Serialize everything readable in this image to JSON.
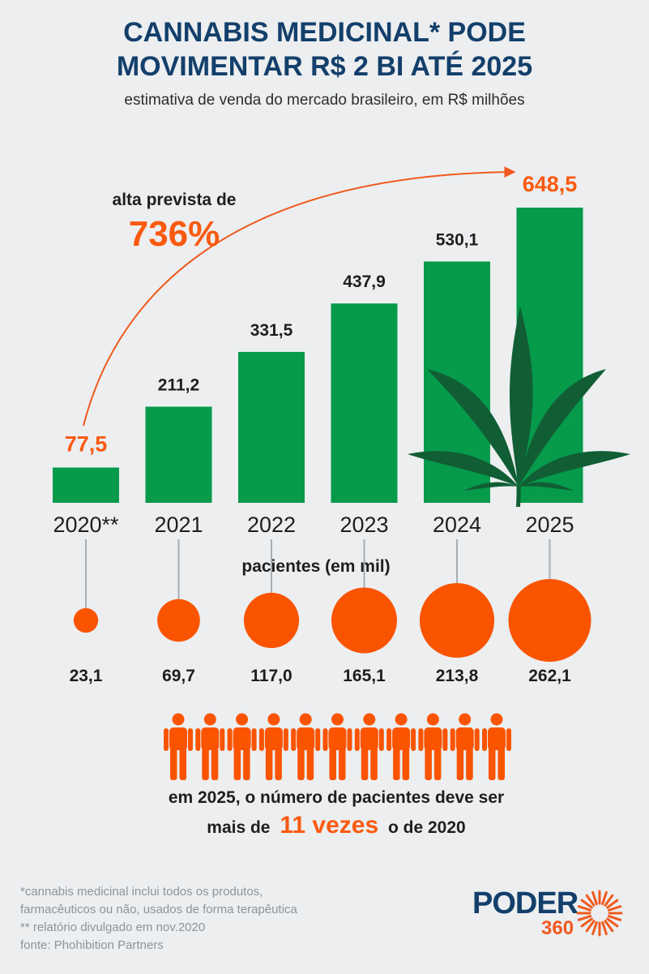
{
  "header": {
    "title_line1": "CANNABIS MEDICINAL* PODE",
    "title_line2": "MOVIMENTAR R$ 2 BI ATÉ 2025",
    "subtitle": "estimativa de venda do mercado brasileiro, em R$ milhões"
  },
  "growth": {
    "label": "alta prevista de",
    "value": "736%"
  },
  "chart_data": {
    "type": "bar",
    "categories": [
      "2020**",
      "2021",
      "2022",
      "2023",
      "2024",
      "2025"
    ],
    "values": [
      77.5,
      211.2,
      331.5,
      437.9,
      530.1,
      648.5
    ],
    "value_labels": [
      "77,5",
      "211,2",
      "331,5",
      "437,9",
      "530,1",
      "648,5"
    ],
    "ylim": [
      0,
      648.5
    ],
    "highlight_indices": [
      0,
      5
    ],
    "colors": {
      "bar": "#069a4b",
      "highlight": "#fa5a10",
      "label": "#1e1e1e"
    },
    "patients": {
      "title": "pacientes (em mil)",
      "values": [
        23.1,
        69.7,
        117.0,
        165.1,
        213.8,
        262.1
      ],
      "labels": [
        "23,1",
        "69,7",
        "117,0",
        "165,1",
        "213,8",
        "262,1"
      ],
      "color": "#fa5400"
    }
  },
  "people": {
    "count": 11,
    "color": "#fa5400",
    "caption_line1": "em 2025, o número de pacientes deve ser",
    "caption_prefix": "mais de",
    "caption_highlight": "11 vezes",
    "caption_suffix": "o de 2020"
  },
  "footnotes": [
    "*cannabis medicinal inclui todos os produtos,",
    "farmacêuticos ou não, usados de forma terapêutica",
    "** relatório divulgado em nov.2020",
    "fonte: Phohibition Partners"
  ],
  "logo": {
    "line1": "PODER",
    "line2": "360",
    "color": "#f05a1e"
  }
}
